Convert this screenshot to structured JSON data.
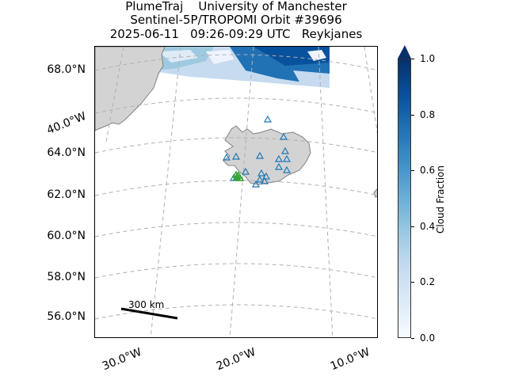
{
  "title": {
    "line1": "PlumeTraj    University of Manchester",
    "line2": "Sentinel-5P/TROPOMI Orbit #39696",
    "line3": "2025-06-11   09:26-09:29 UTC   Reykjanes"
  },
  "lat_labels": [
    "68.0°N",
    "40.0°W",
    "64.0°N",
    "62.0°N",
    "60.0°N",
    "58.0°N",
    "56.0°N"
  ],
  "lon_labels": [
    "30.0°W",
    "20.0°W",
    "10.0°W"
  ],
  "colorbar": {
    "label": "Cloud Fraction",
    "ticks": [
      "0.0",
      "0.2",
      "0.4",
      "0.6",
      "0.8",
      "1.0"
    ],
    "colormap": "Blues",
    "extend": "max"
  },
  "scale_bar": {
    "label": "300 km"
  },
  "colors": {
    "land": "#d3d3d3",
    "coastline": "#808080",
    "gridline": "#b0b0b0",
    "volcano_marker": "#1f77b4",
    "source_marker": "#2ca02c"
  },
  "markers": {
    "volcano_symbol": "triangle-open",
    "source_symbol": "triangle-open"
  }
}
